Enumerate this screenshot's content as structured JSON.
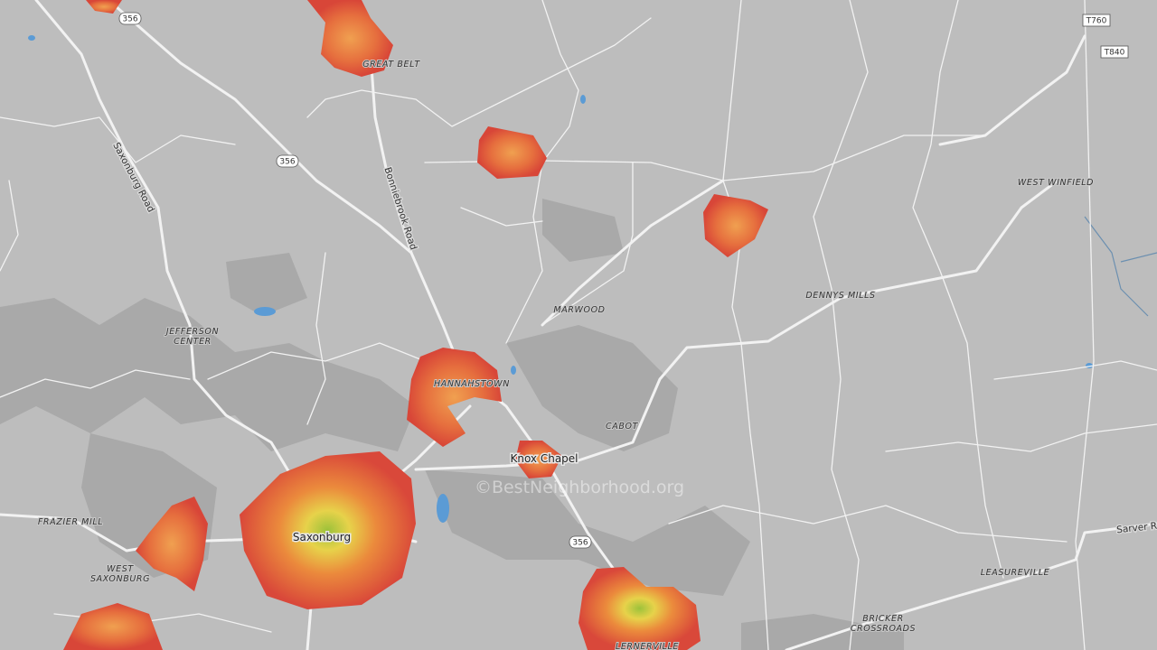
{
  "shields": {
    "sr356_north": "356",
    "sr356_mid": "356",
    "sr356_south": "356",
    "t760": "T760",
    "t840": "T840"
  },
  "places": {
    "great_belt": "GREAT BELT",
    "west_winfield": "WEST WINFIELD",
    "dennys_mills": "DENNYS MILLS",
    "marwood": "MARWOOD",
    "jefferson_center": {
      "lines": [
        "JEFFERSON",
        "CENTER"
      ]
    },
    "hannahstown": "HANNAHSTOWN",
    "cabot": "CABOT",
    "frazier_mill": "FRAZIER MILL",
    "west_saxonburg": {
      "lines": [
        "WEST",
        "SAXONBURG"
      ]
    },
    "leasureville": "LEASUREVILLE",
    "bricker_crossroads": {
      "lines": [
        "BRICKER",
        "CROSSROADS"
      ]
    },
    "lernerville": "LERNERVILLE"
  },
  "towns": {
    "knox_chapel": "Knox Chapel",
    "saxonburg": "Saxonburg"
  },
  "roads": {
    "saxonburg_road": "Saxonburg Road",
    "bonniebrook_road": "Bonniebrook Road",
    "sarver_road": "Sarver R"
  },
  "watermark": "©BestNeighborhood.org"
}
